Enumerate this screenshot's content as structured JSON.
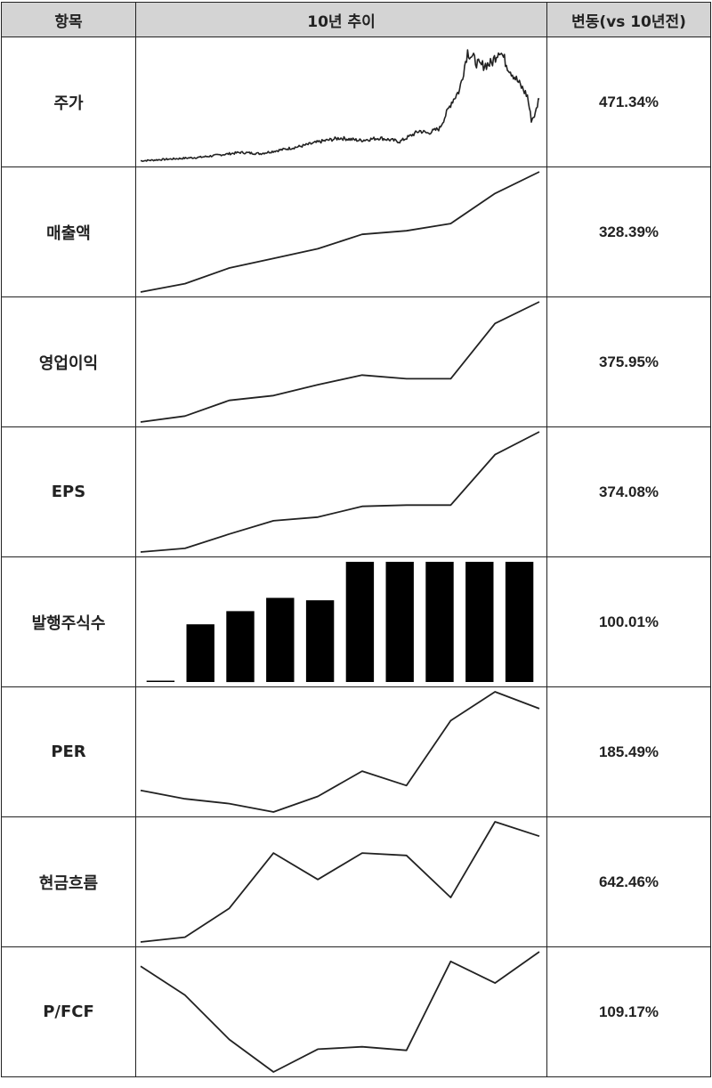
{
  "header": {
    "col_item": "항목",
    "col_trend": "10년 추이",
    "col_change": "변동(vs 10년전)"
  },
  "rows": [
    {
      "label": "주가",
      "change": "471.34%",
      "chart_type": "line"
    },
    {
      "label": "매출액",
      "change": "328.39%",
      "chart_type": "line"
    },
    {
      "label": "영업이익",
      "change": "375.95%",
      "chart_type": "line"
    },
    {
      "label": "EPS",
      "change": "374.08%",
      "chart_type": "line"
    },
    {
      "label": "발행주식수",
      "change": "100.01%",
      "chart_type": "bar"
    },
    {
      "label": "PER",
      "change": "185.49%",
      "chart_type": "line"
    },
    {
      "label": "현금흐름",
      "change": "642.46%",
      "chart_type": "line"
    },
    {
      "label": "P/FCF",
      "change": "109.17%",
      "chart_type": "line"
    }
  ],
  "chart_data": [
    {
      "type": "line",
      "title": "주가",
      "note": "10-year daily stock price trend (relative scale 0-100, estimated)",
      "x": [
        0,
        5,
        10,
        15,
        20,
        25,
        30,
        35,
        40,
        45,
        50,
        55,
        60,
        65,
        70,
        72,
        75,
        78,
        80,
        82,
        85,
        88,
        90,
        92,
        95,
        97,
        98,
        99,
        100
      ],
      "values": [
        1,
        2,
        3,
        4,
        6,
        8,
        7,
        10,
        13,
        17,
        20,
        18,
        20,
        17,
        26,
        24,
        28,
        50,
        60,
        92,
        80,
        82,
        94,
        80,
        65,
        55,
        35,
        40,
        55
      ],
      "ylim": [
        0,
        100
      ],
      "change": "471.34%"
    },
    {
      "type": "line",
      "title": "매출액",
      "x": [
        1,
        2,
        3,
        4,
        5,
        6,
        7,
        8,
        9,
        10
      ],
      "values": [
        0,
        7,
        20,
        28,
        36,
        48,
        51,
        57,
        82,
        100
      ],
      "ylim": [
        0,
        100
      ],
      "change": "328.39%"
    },
    {
      "type": "line",
      "title": "영업이익",
      "x": [
        1,
        2,
        3,
        4,
        5,
        6,
        7,
        8,
        9,
        10
      ],
      "values": [
        0,
        5,
        18,
        22,
        31,
        39,
        36,
        36,
        82,
        100
      ],
      "ylim": [
        0,
        100
      ],
      "change": "375.95%"
    },
    {
      "type": "line",
      "title": "EPS",
      "x": [
        1,
        2,
        3,
        4,
        5,
        6,
        7,
        8,
        9,
        10
      ],
      "values": [
        0,
        3,
        15,
        26,
        29,
        38,
        39,
        39,
        81,
        100
      ],
      "ylim": [
        0,
        100
      ],
      "change": "374.08%"
    },
    {
      "type": "bar",
      "title": "발행주식수",
      "categories": [
        "1",
        "2",
        "3",
        "4",
        "5",
        "6",
        "7",
        "8",
        "9",
        "10"
      ],
      "values": [
        1,
        48,
        59,
        70,
        68,
        100,
        100,
        100,
        100,
        100
      ],
      "ylim": [
        0,
        100
      ],
      "change": "100.01%"
    },
    {
      "type": "line",
      "title": "PER",
      "x": [
        1,
        2,
        3,
        4,
        5,
        6,
        7,
        8,
        9,
        10
      ],
      "values": [
        18,
        11,
        7,
        0,
        13,
        34,
        22,
        76,
        100,
        86
      ],
      "ylim": [
        0,
        100
      ],
      "change": "185.49%"
    },
    {
      "type": "line",
      "title": "현금흐름",
      "x": [
        1,
        2,
        3,
        4,
        5,
        6,
        7,
        8,
        9,
        10
      ],
      "values": [
        0,
        4,
        28,
        74,
        52,
        74,
        72,
        37,
        100,
        88
      ],
      "ylim": [
        0,
        100
      ],
      "change": "642.46%"
    },
    {
      "type": "line",
      "title": "P/FCF",
      "x": [
        1,
        2,
        3,
        4,
        5,
        6,
        7,
        8,
        9,
        10
      ],
      "values": [
        88,
        64,
        27,
        0,
        19,
        21,
        18,
        92,
        74,
        100
      ],
      "ylim": [
        0,
        100
      ],
      "change": "109.17%"
    }
  ]
}
